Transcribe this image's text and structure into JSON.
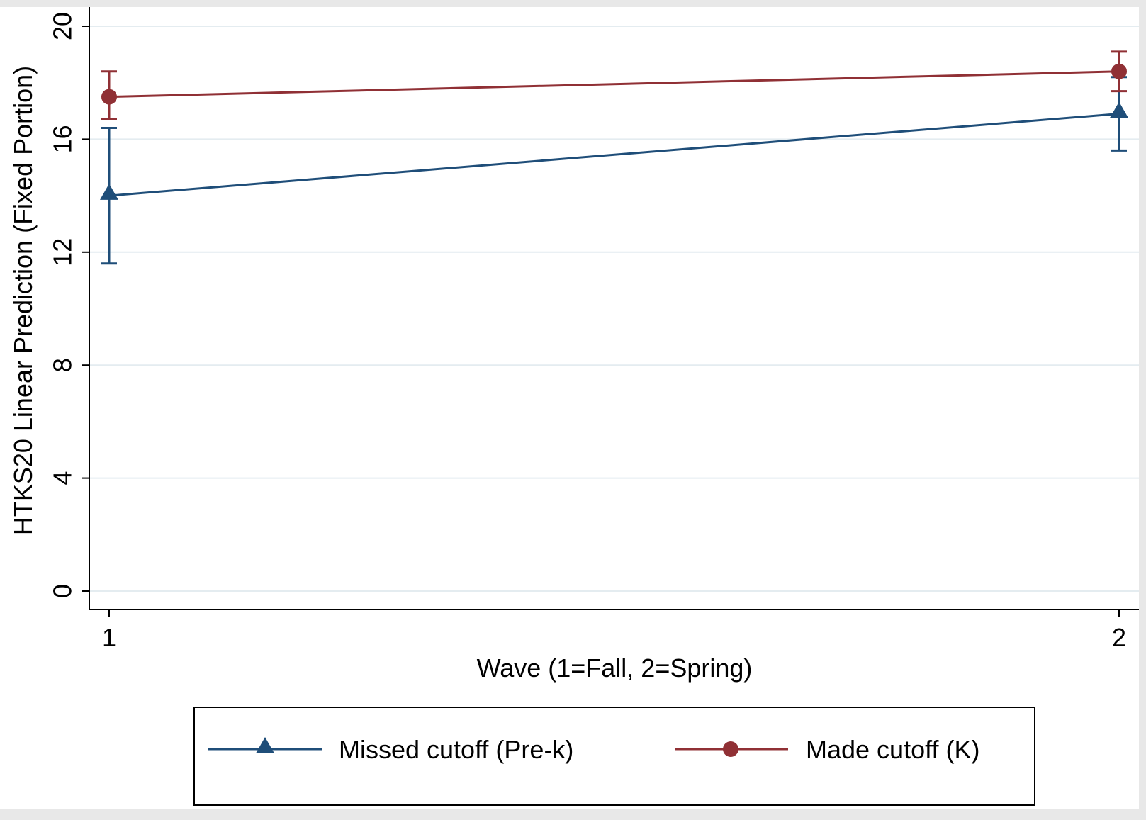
{
  "chart_data": {
    "type": "line",
    "title": "",
    "xlabel": "Wave (1=Fall, 2=Spring)",
    "ylabel": "HTKS20 Linear Prediction (Fixed Portion)",
    "x": [
      1,
      2
    ],
    "x_ticks": [
      "1",
      "2"
    ],
    "y_ticks": [
      "0",
      "4",
      "8",
      "12",
      "16",
      "20"
    ],
    "ylim": [
      0,
      20
    ],
    "grid": true,
    "legend_position": "bottom",
    "series": [
      {
        "name": "Missed cutoff (Pre-k)",
        "color": "#1f4e79",
        "marker": "triangle",
        "values": [
          14.0,
          16.9
        ],
        "ci_lower": [
          11.6,
          15.6
        ],
        "ci_upper": [
          16.4,
          18.2
        ]
      },
      {
        "name": "Made cutoff (K)",
        "color": "#903035",
        "marker": "circle",
        "values": [
          17.5,
          18.4
        ],
        "ci_lower": [
          16.7,
          17.7
        ],
        "ci_upper": [
          18.4,
          19.1
        ]
      }
    ]
  }
}
